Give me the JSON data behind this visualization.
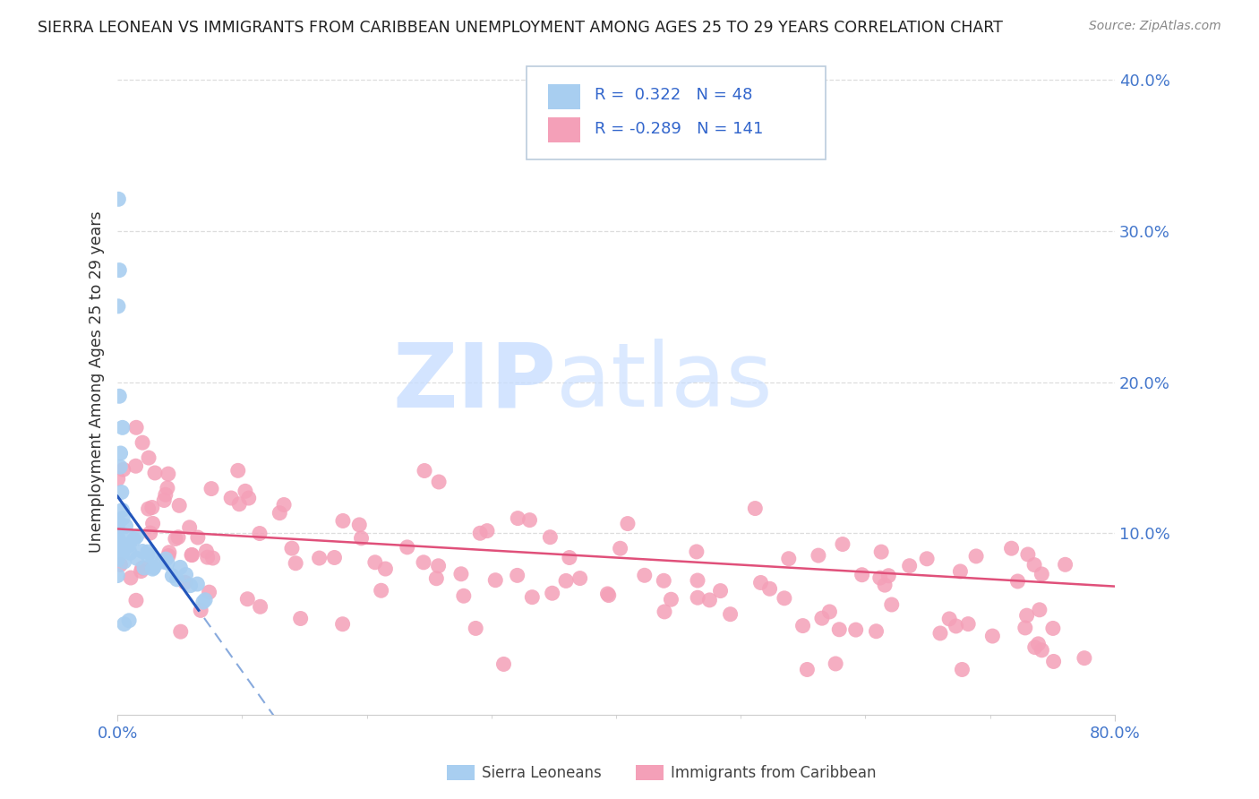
{
  "title": "SIERRA LEONEAN VS IMMIGRANTS FROM CARIBBEAN UNEMPLOYMENT AMONG AGES 25 TO 29 YEARS CORRELATION CHART",
  "source": "Source: ZipAtlas.com",
  "ylabel": "Unemployment Among Ages 25 to 29 years",
  "xlim": [
    0.0,
    0.8
  ],
  "ylim": [
    -0.02,
    0.42
  ],
  "blue_R": 0.322,
  "blue_N": 48,
  "pink_R": -0.289,
  "pink_N": 141,
  "blue_color": "#A8CEF0",
  "pink_color": "#F4A0B8",
  "blue_line_color": "#2255BB",
  "blue_dash_color": "#88AADD",
  "pink_line_color": "#E0507A",
  "grid_color": "#DDDDDD",
  "ytick_color": "#4477CC",
  "xtick_color": "#4477CC",
  "spine_color": "#CCCCCC",
  "title_color": "#222222",
  "source_color": "#888888",
  "legend_text_color": "#3366CC",
  "bottom_legend_color": "#444444"
}
